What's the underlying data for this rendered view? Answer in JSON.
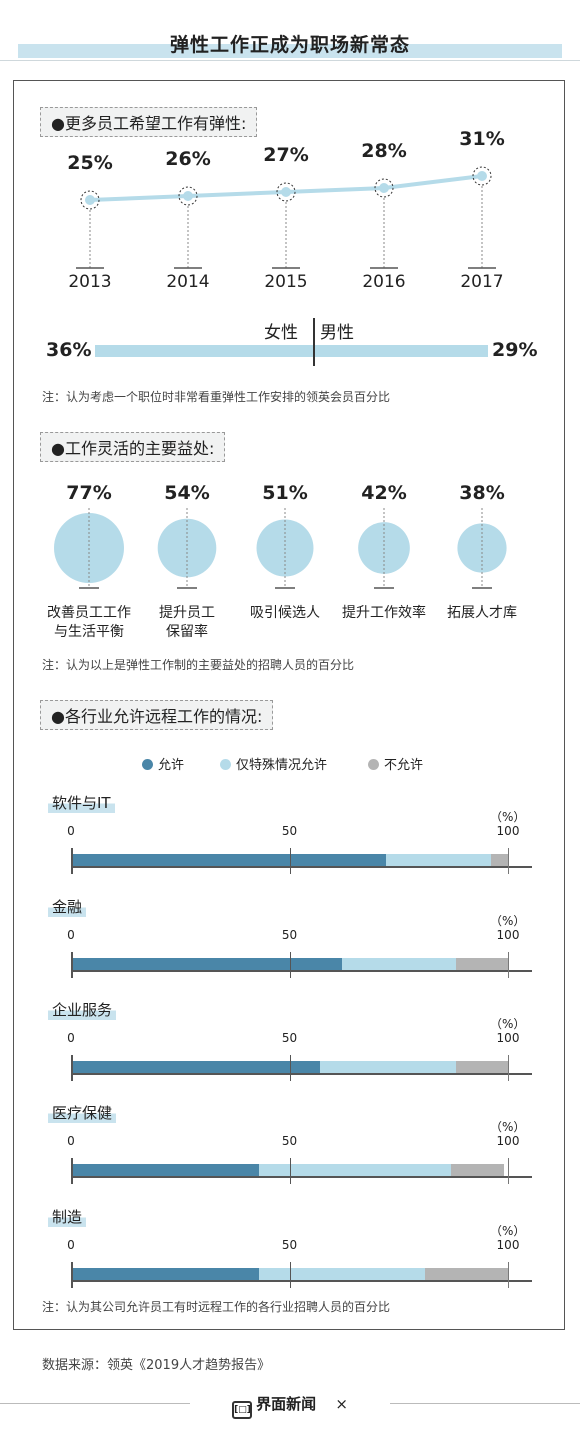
{
  "title": "弹性工作正成为职场新常态",
  "section1": {
    "heading": "●更多员工希望工作有弹性:",
    "note": "注：认为考虑一个职位时非常看重弹性工作安排的领英会员百分比"
  },
  "gender": {
    "female_label": "女性",
    "male_label": "男性",
    "female_pct": "36%",
    "male_pct": "29%"
  },
  "section2": {
    "heading": "●工作灵活的主要益处:",
    "note": "注：认为以上是弹性工作制的主要益处的招聘人员的百分比"
  },
  "section3": {
    "heading": "●各行业允许远程工作的情况:",
    "legend": [
      "允许",
      "仅特殊情况允许",
      "不允许"
    ],
    "note": "注：认为其公司允许员工有时远程工作的各行业招聘人员的百分比",
    "tick_labels": [
      "0",
      "50",
      "100"
    ],
    "unit": "（%）"
  },
  "footer": {
    "source": "数据来源：领英《2019人才趋势报告》",
    "brand": "界面新闻",
    "times": "×",
    "brand_icon": "[□]"
  },
  "colors": {
    "allow": "#4a86a8",
    "special": "#b5dbe9",
    "deny": "#b4b4b4",
    "line": "#b5dbe9",
    "circle": "#b5dbe9"
  },
  "chart_data": [
    {
      "type": "line",
      "x": [
        "2013",
        "2014",
        "2015",
        "2016",
        "2017"
      ],
      "values": [
        25,
        26,
        27,
        28,
        31
      ],
      "value_labels": [
        "25%",
        "26%",
        "27%",
        "28%",
        "31%"
      ]
    },
    {
      "type": "bar",
      "categories": [
        "女性",
        "男性"
      ],
      "values": [
        36,
        29
      ]
    },
    {
      "type": "scatter",
      "categories": [
        "改善员工工作与生活平衡",
        "提升员工保留率",
        "吸引候选人",
        "提升工作效率",
        "拓展人才库"
      ],
      "label_lines": [
        [
          "改善员工工作",
          "与生活平衡"
        ],
        [
          "提升员工",
          "保留率"
        ],
        [
          "吸引候选人"
        ],
        [
          "提升工作效率"
        ],
        [
          "拓展人才库"
        ]
      ],
      "values": [
        77,
        54,
        51,
        42,
        38
      ],
      "value_labels": [
        "77%",
        "54%",
        "51%",
        "42%",
        "38%"
      ]
    },
    {
      "type": "bar",
      "stacked": true,
      "categories": [
        "软件与IT",
        "金融",
        "企业服务",
        "医疗保健",
        "制造"
      ],
      "series": [
        {
          "name": "允许",
          "values": [
            72,
            62,
            57,
            43,
            43
          ]
        },
        {
          "name": "仅特殊情况允许",
          "values": [
            24,
            26,
            31,
            44,
            38
          ]
        },
        {
          "name": "不允许",
          "values": [
            4,
            12,
            12,
            12,
            19
          ]
        }
      ],
      "xlim": [
        0,
        100
      ]
    }
  ]
}
